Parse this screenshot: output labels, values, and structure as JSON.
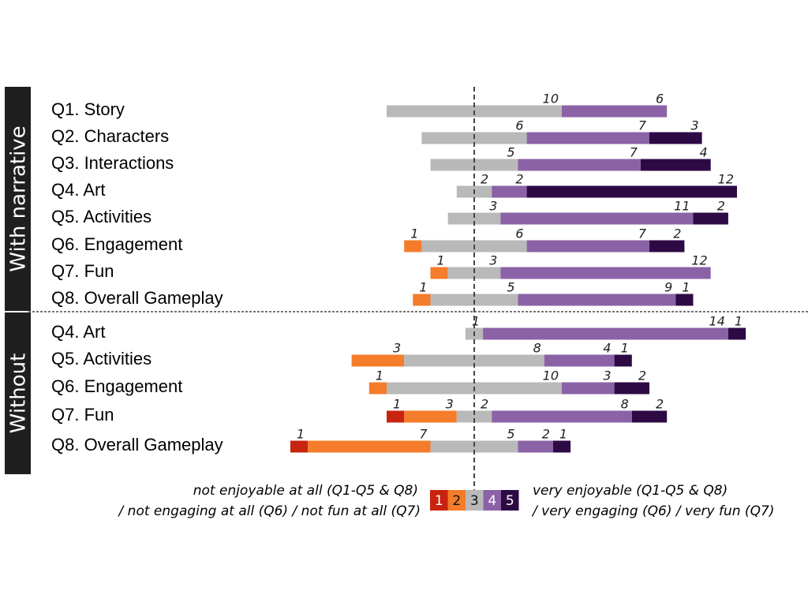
{
  "colors": {
    "1": "#c8230f",
    "2": "#f47c2a",
    "3": "#b9b9b9",
    "4": "#8b62a6",
    "5": "#2e0a45"
  },
  "chart_data": {
    "type": "bar",
    "scale": [
      1,
      2,
      3,
      4,
      5
    ],
    "groups": [
      {
        "label": "With narrative",
        "rows": [
          {
            "label": "Q1. Story",
            "counts": [
              0,
              0,
              10,
              6,
              0
            ]
          },
          {
            "label": "Q2. Characters",
            "counts": [
              0,
              0,
              6,
              7,
              3
            ]
          },
          {
            "label": "Q3. Interactions",
            "counts": [
              0,
              0,
              5,
              7,
              4
            ]
          },
          {
            "label": "Q4. Art",
            "counts": [
              0,
              0,
              2,
              2,
              12
            ]
          },
          {
            "label": "Q5. Activities",
            "counts": [
              0,
              0,
              3,
              11,
              2
            ]
          },
          {
            "label": "Q6. Engagement",
            "counts": [
              0,
              1,
              6,
              7,
              2
            ]
          },
          {
            "label": "Q7. Fun",
            "counts": [
              0,
              1,
              3,
              12,
              0
            ]
          },
          {
            "label": "Q8. Overall Gameplay",
            "counts": [
              0,
              1,
              5,
              9,
              1
            ]
          }
        ]
      },
      {
        "label": "Without",
        "rows": [
          {
            "label": "Q4. Art",
            "counts": [
              0,
              0,
              1,
              14,
              1
            ]
          },
          {
            "label": "Q5. Activities",
            "counts": [
              0,
              3,
              8,
              4,
              1
            ]
          },
          {
            "label": "Q6. Engagement",
            "counts": [
              0,
              1,
              10,
              3,
              2
            ]
          },
          {
            "label": "Q7. Fun",
            "counts": [
              1,
              3,
              2,
              8,
              2
            ]
          },
          {
            "label": "Q8. Overall Gameplay",
            "counts": [
              1,
              7,
              5,
              2,
              1
            ]
          }
        ]
      }
    ],
    "legend": {
      "left_line1": "not enjoyable at all (Q1-Q5 & Q8)",
      "left_line2": "/ not engaging at all (Q6) / not fun at all (Q7)",
      "right_line1": "very enjoyable (Q1-Q5 & Q8)",
      "right_line2": "/ very engaging (Q6) / very fun (Q7)",
      "keys": [
        "1",
        "2",
        "3",
        "4",
        "5"
      ]
    }
  }
}
